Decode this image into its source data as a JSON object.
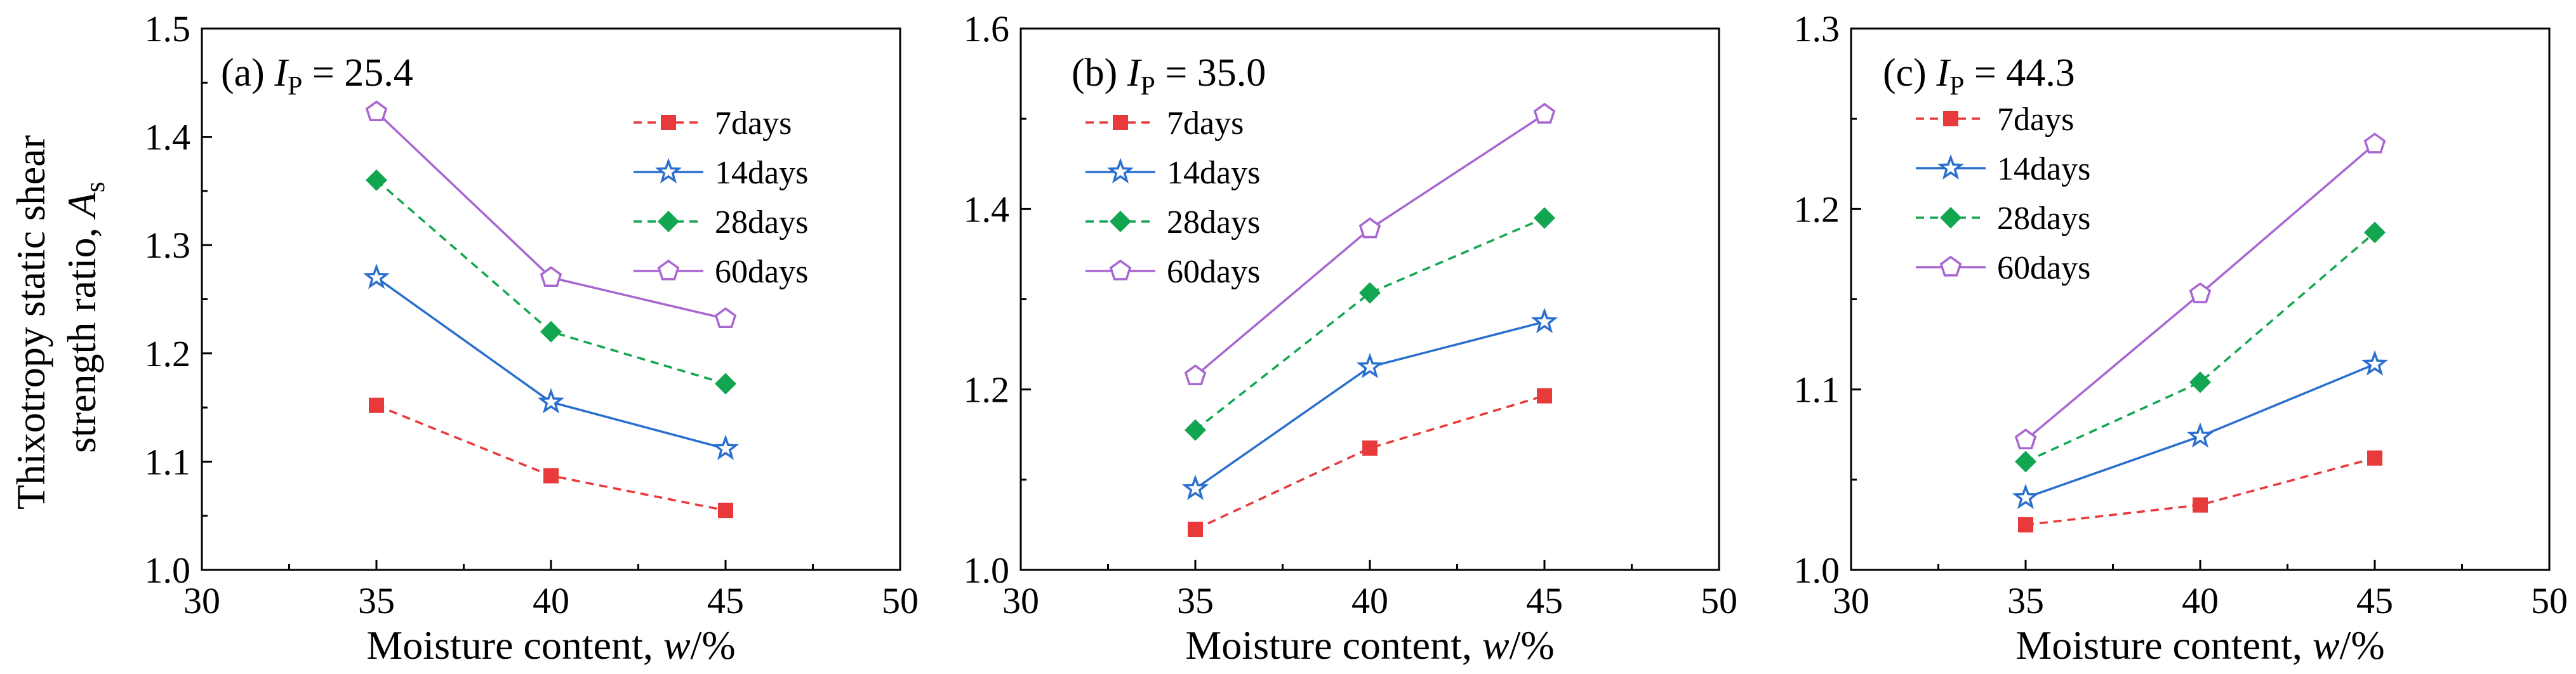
{
  "figure": {
    "ylabel_line1": "Thixotropy static shear",
    "ylabel_line2_prefix": "strength ratio, ",
    "ylabel_symbol": "A",
    "ylabel_subscript": "s"
  },
  "chart_data": [
    {
      "type": "line",
      "panel_label": "(a)",
      "ip_symbol": "I",
      "ip_subscript": "P",
      "ip_value": "= 25.4",
      "xlabel_prefix": "Moisture content, ",
      "xlabel_symbol": "w",
      "xlabel_suffix": "/%",
      "xlim": [
        30,
        50
      ],
      "ylim": [
        1.0,
        1.5
      ],
      "xticks": [
        30,
        35,
        40,
        45,
        50
      ],
      "yticks": [
        "1.0",
        "1.1",
        "1.2",
        "1.3",
        "1.4",
        "1.5"
      ],
      "x": [
        35,
        40,
        45
      ],
      "series": [
        {
          "name": "7days",
          "legend_label": " 7days",
          "color": "#e8393b",
          "marker": "square",
          "dashed": true,
          "values": [
            1.152,
            1.087,
            1.055
          ]
        },
        {
          "name": "14days",
          "legend_label": "14days",
          "color": "#2a6fce",
          "marker": "star",
          "dashed": false,
          "values": [
            1.27,
            1.155,
            1.112
          ]
        },
        {
          "name": "28days",
          "legend_label": "28days",
          "color": "#12a650",
          "marker": "diamond",
          "dashed": true,
          "values": [
            1.36,
            1.22,
            1.172
          ]
        },
        {
          "name": "60days",
          "legend_label": "60days",
          "color": "#a866d0",
          "marker": "pentagon",
          "dashed": false,
          "values": [
            1.423,
            1.27,
            1.232
          ]
        }
      ]
    },
    {
      "type": "line",
      "panel_label": "(b)",
      "ip_symbol": "I",
      "ip_subscript": "P",
      "ip_value": "= 35.0",
      "xlabel_prefix": "Moisture content, ",
      "xlabel_symbol": "w",
      "xlabel_suffix": "/%",
      "xlim": [
        30,
        50
      ],
      "ylim": [
        1.0,
        1.6
      ],
      "xticks": [
        30,
        35,
        40,
        45,
        50
      ],
      "yticks": [
        "1.0",
        "1.2",
        "1.4",
        "1.6"
      ],
      "x": [
        35,
        40,
        45
      ],
      "series": [
        {
          "name": "7days",
          "legend_label": " 7days",
          "color": "#e8393b",
          "marker": "square",
          "dashed": true,
          "values": [
            1.045,
            1.135,
            1.193
          ]
        },
        {
          "name": "14days",
          "legend_label": "14days",
          "color": "#2a6fce",
          "marker": "star",
          "dashed": false,
          "values": [
            1.09,
            1.225,
            1.275
          ]
        },
        {
          "name": "28days",
          "legend_label": "28days",
          "color": "#12a650",
          "marker": "diamond",
          "dashed": true,
          "values": [
            1.155,
            1.307,
            1.39
          ]
        },
        {
          "name": "60days",
          "legend_label": "60days",
          "color": "#a866d0",
          "marker": "pentagon",
          "dashed": false,
          "values": [
            1.215,
            1.378,
            1.505
          ]
        }
      ]
    },
    {
      "type": "line",
      "panel_label": "(c)",
      "ip_symbol": "I",
      "ip_subscript": "P",
      "ip_value": "= 44.3",
      "xlabel_prefix": "Moisture content, ",
      "xlabel_symbol": "w",
      "xlabel_suffix": "/%",
      "xlim": [
        30,
        50
      ],
      "ylim": [
        1.0,
        1.3
      ],
      "xticks": [
        30,
        35,
        40,
        45,
        50
      ],
      "yticks": [
        "1.0",
        "1.1",
        "1.2",
        "1.3"
      ],
      "x": [
        35,
        40,
        45
      ],
      "series": [
        {
          "name": "7days",
          "legend_label": " 7days",
          "color": "#e8393b",
          "marker": "square",
          "dashed": true,
          "values": [
            1.025,
            1.036,
            1.062
          ]
        },
        {
          "name": "14days",
          "legend_label": "14days",
          "color": "#2a6fce",
          "marker": "star",
          "dashed": false,
          "values": [
            1.04,
            1.074,
            1.114
          ]
        },
        {
          "name": "28days",
          "legend_label": "28days",
          "color": "#12a650",
          "marker": "diamond",
          "dashed": true,
          "values": [
            1.06,
            1.104,
            1.187
          ]
        },
        {
          "name": "60days",
          "legend_label": "60days",
          "color": "#a866d0",
          "marker": "pentagon",
          "dashed": false,
          "values": [
            1.072,
            1.153,
            1.236
          ]
        }
      ]
    }
  ]
}
